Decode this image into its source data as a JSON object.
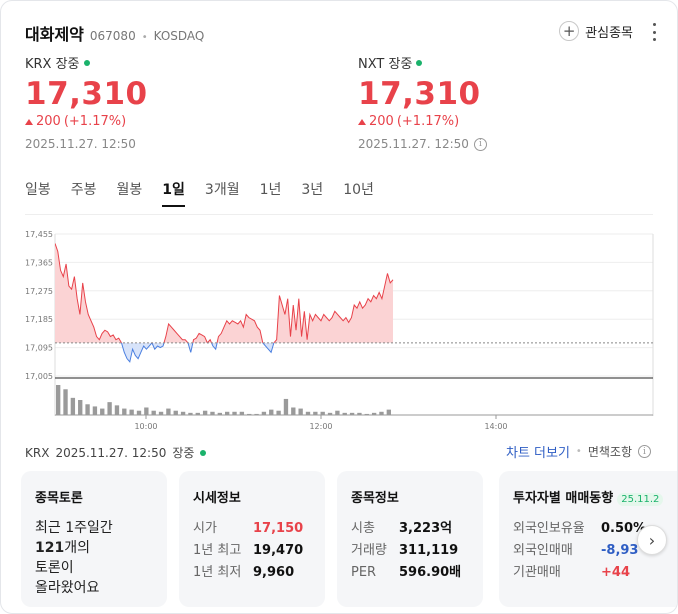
{
  "stock": {
    "name": "대화제약",
    "code": "067080",
    "market": "KOSDAQ"
  },
  "watch_label": "관심종목",
  "krx": {
    "venue": "KRX 장중",
    "price": "17,310",
    "change": "200",
    "change_pct": "(+1.17%)",
    "timestamp": "2025.11.27. 12:50"
  },
  "nxt": {
    "venue": "NXT 장중",
    "price": "17,310",
    "change": "200",
    "change_pct": "(+1.17%)",
    "timestamp": "2025.11.27. 12:50"
  },
  "tabs": [
    "일봉",
    "주봉",
    "월봉",
    "1일",
    "3개월",
    "1년",
    "3년",
    "10년"
  ],
  "active_tab": "1일",
  "status": {
    "venue": "KRX",
    "timestamp": "2025.11.27. 12:50",
    "state": "장중"
  },
  "links": {
    "chart_more": "차트 더보기",
    "disclaimer": "면책조항"
  },
  "chart_data": {
    "type": "area",
    "y_ticks": [
      "17,455",
      "17,365",
      "17,275",
      "17,185",
      "17,095",
      "17,005"
    ],
    "ylim": [
      17005,
      17455
    ],
    "x_ticks": [
      "10:00",
      "12:00",
      "14:00"
    ],
    "baseline": 17110,
    "colors": {
      "up": "#e8424a",
      "up_fill": "#fbd3d4",
      "down": "#4a7fe0",
      "down_fill": "#d7e3fa",
      "volume": "#9a9a9a"
    },
    "price": [
      17425,
      17400,
      17340,
      17320,
      17360,
      17290,
      17280,
      17320,
      17250,
      17200,
      17300,
      17240,
      17200,
      17180,
      17160,
      17130,
      17120,
      17140,
      17150,
      17145,
      17130,
      17135,
      17120,
      17125,
      17110,
      17080,
      17060,
      17050,
      17090,
      17070,
      17060,
      17080,
      17100,
      17090,
      17100,
      17110,
      17090,
      17100,
      17095,
      17100,
      17130,
      17170,
      17160,
      17150,
      17140,
      17130,
      17120,
      17120,
      17110,
      17080,
      17120,
      17125,
      17140,
      17135,
      17130,
      17110,
      17120,
      17100,
      17090,
      17130,
      17140,
      17160,
      17180,
      17170,
      17180,
      17175,
      17170,
      17180,
      17160,
      17200,
      17190,
      17185,
      17180,
      17160,
      17150,
      17110,
      17100,
      17090,
      17080,
      17110,
      17120,
      17260,
      17230,
      17200,
      17250,
      17130,
      17230,
      17150,
      17250,
      17130,
      17210,
      17120,
      17200,
      17180,
      17200,
      17190,
      17180,
      17200,
      17190,
      17180,
      17190,
      17210,
      17200,
      17190,
      17180,
      17190,
      17175,
      17190,
      17230,
      17220,
      17240,
      17220,
      17230,
      17250,
      17240,
      17260,
      17250,
      17270,
      17250,
      17290,
      17330,
      17300,
      17310
    ],
    "volume": [
      28,
      24,
      16,
      14,
      10,
      8,
      6,
      12,
      9,
      6,
      5,
      4,
      7,
      4,
      3,
      6,
      4,
      3,
      2,
      2,
      4,
      3,
      2,
      3,
      3,
      3,
      1,
      1,
      3,
      5,
      4,
      15,
      7,
      6,
      3,
      3,
      3,
      2,
      4,
      2,
      2,
      2,
      1,
      2,
      3,
      5
    ]
  },
  "panels": {
    "forum": {
      "title": "종목토론",
      "line1": "최근 1주일간",
      "count": "121",
      "count_suffix": "개의",
      "line3": "토론이",
      "line4": "올라왔어요"
    },
    "market": {
      "title": "시세정보",
      "rows": [
        {
          "k": "시가",
          "v": "17,150"
        },
        {
          "k": "1년 최고",
          "v": "19,470"
        },
        {
          "k": "1년 최저",
          "v": "9,960"
        }
      ]
    },
    "company": {
      "title": "종목정보",
      "rows": [
        {
          "k": "시총",
          "v": "3,223억"
        },
        {
          "k": "거래량",
          "v": "311,119"
        },
        {
          "k": "PER",
          "v": "596.90배"
        }
      ]
    },
    "investor": {
      "title": "투자자별 매매동향",
      "badge": "25.11.2",
      "rows": [
        {
          "k": "외국인보유율",
          "v": "0.50%"
        },
        {
          "k": "외국인매매",
          "v": "-8,93"
        },
        {
          "k": "기관매매",
          "v": "+44"
        }
      ]
    }
  }
}
